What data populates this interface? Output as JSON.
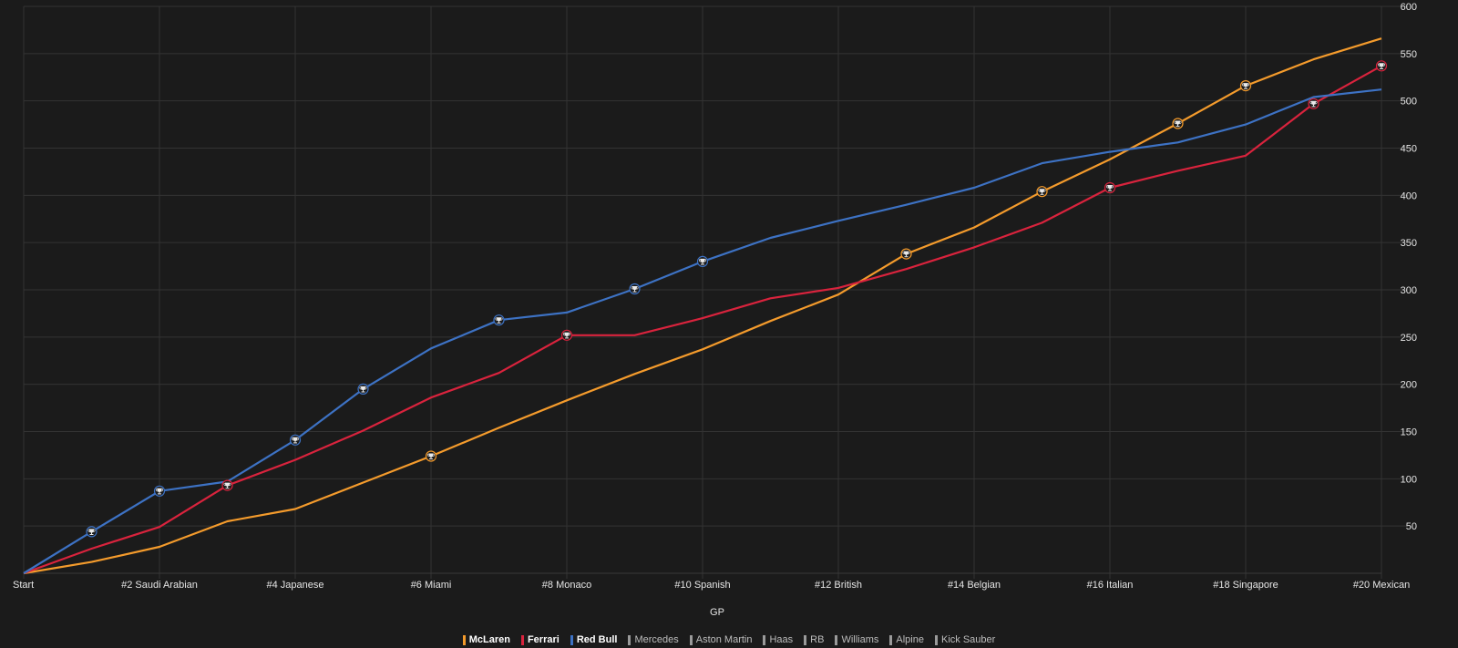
{
  "chart_data": {
    "type": "line",
    "xlabel": "GP",
    "ylabel": "",
    "ylim": [
      0,
      600
    ],
    "yticks": [
      50,
      100,
      150,
      200,
      250,
      300,
      350,
      400,
      450,
      500,
      550,
      600
    ],
    "x": [
      "Start",
      "#1",
      "#2 Saudi Arabian",
      "#3",
      "#4 Japanese",
      "#5",
      "#6 Miami",
      "#7",
      "#8 Monaco",
      "#9",
      "#10 Spanish",
      "#11",
      "#12 British",
      "#13",
      "#14 Belgian",
      "#15",
      "#16 Italian",
      "#17",
      "#18 Singapore",
      "#19",
      "#20 Mexican"
    ],
    "xtick_labels": [
      "Start",
      "#2 Saudi Arabian",
      "#4 Japanese",
      "#6 Miami",
      "#8 Monaco",
      "#10 Spanish",
      "#12 British",
      "#14 Belgian",
      "#16 Italian",
      "#18 Singapore",
      "#20 Mexican"
    ],
    "grid": true,
    "legend_position": "bottom-center",
    "series": [
      {
        "name": "McLaren",
        "color": "#f49b2c",
        "values": [
          0,
          12,
          28,
          55,
          68,
          96,
          124,
          154,
          183,
          211,
          237,
          267,
          295,
          338,
          366,
          404,
          438,
          476,
          516,
          544,
          566
        ],
        "wins": [
          6,
          13,
          15,
          17,
          18
        ]
      },
      {
        "name": "Ferrari",
        "color": "#d9233d",
        "values": [
          0,
          26,
          49,
          93,
          120,
          151,
          186,
          212,
          252,
          252,
          270,
          291,
          302,
          322,
          345,
          371,
          408,
          426,
          442,
          497,
          537
        ],
        "wins": [
          3,
          8,
          16,
          19,
          20
        ]
      },
      {
        "name": "Red Bull",
        "color": "#3d72c4",
        "values": [
          0,
          44,
          87,
          97,
          141,
          195,
          238,
          268,
          276,
          301,
          330,
          355,
          373,
          390,
          408,
          434,
          446,
          456,
          475,
          504,
          512
        ],
        "wins": [
          1,
          2,
          4,
          5,
          7,
          9,
          10
        ]
      }
    ],
    "legend": [
      {
        "name": "McLaren",
        "color": "#f49b2c",
        "active": true
      },
      {
        "name": "Ferrari",
        "color": "#d9233d",
        "active": true
      },
      {
        "name": "Red Bull",
        "color": "#3d72c4",
        "active": true
      },
      {
        "name": "Mercedes",
        "color": "#9a9a9a",
        "active": false
      },
      {
        "name": "Aston Martin",
        "color": "#9a9a9a",
        "active": false
      },
      {
        "name": "Haas",
        "color": "#9a9a9a",
        "active": false
      },
      {
        "name": "RB",
        "color": "#9a9a9a",
        "active": false
      },
      {
        "name": "Williams",
        "color": "#9a9a9a",
        "active": false
      },
      {
        "name": "Alpine",
        "color": "#9a9a9a",
        "active": false
      },
      {
        "name": "Kick Sauber",
        "color": "#9a9a9a",
        "active": false
      }
    ]
  },
  "icons": {
    "win_marker": "trophy-icon"
  }
}
